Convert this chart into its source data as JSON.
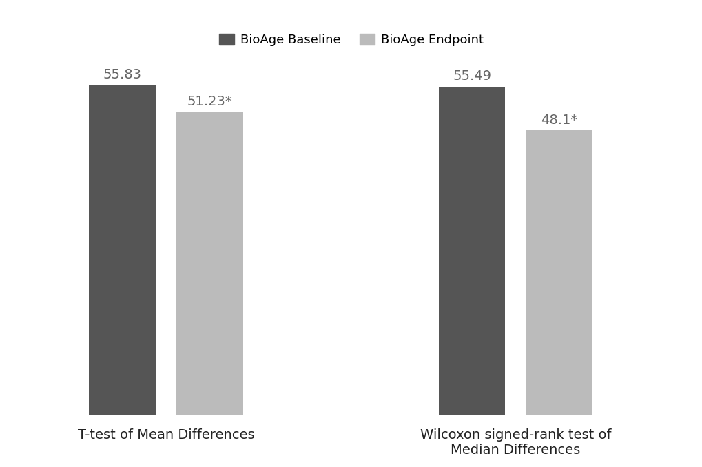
{
  "groups": [
    {
      "label": "T-test of Mean Differences",
      "baseline_value": 55.83,
      "endpoint_value": 51.23,
      "baseline_label": "55.83",
      "endpoint_label": "51.23*"
    },
    {
      "label": "Wilcoxon signed-rank test of\nMedian Differences",
      "baseline_value": 55.49,
      "endpoint_value": 48.1,
      "baseline_label": "55.49",
      "endpoint_label": "48.1*"
    }
  ],
  "legend_labels": [
    "BioAge Baseline",
    "BioAge Endpoint"
  ],
  "baseline_color": "#555555",
  "endpoint_color": "#bbbbbb",
  "ylim": [
    0,
    62
  ],
  "bar_width": 0.38,
  "label_fontsize": 14,
  "value_fontsize": 14,
  "legend_fontsize": 13,
  "background_color": "#ffffff",
  "value_label_color": "#666666",
  "xlabel_color": "#222222"
}
